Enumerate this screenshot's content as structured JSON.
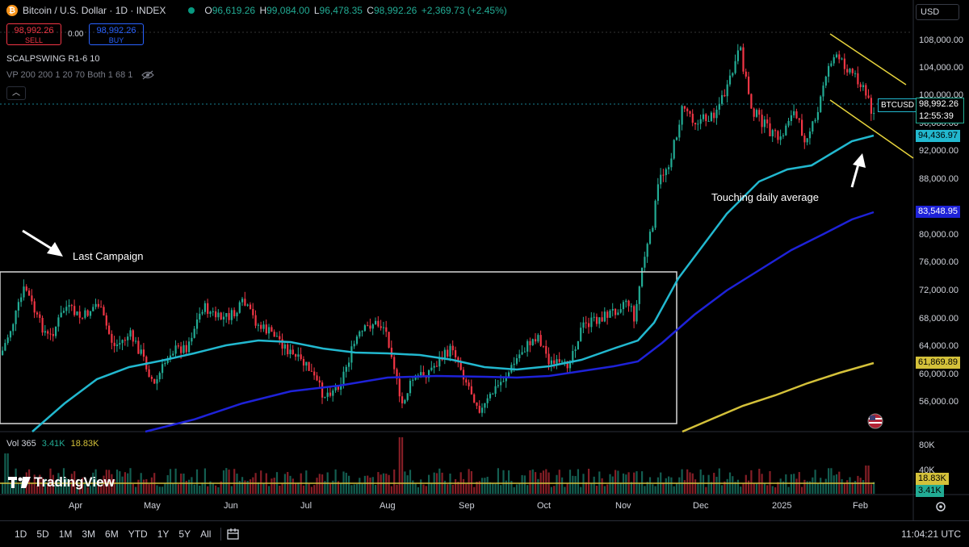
{
  "header": {
    "symbol_title": "Bitcoin / U.S. Dollar · 1D · INDEX",
    "btc_glyph": "₿",
    "ohlc": [
      {
        "key": "O",
        "value": "96,619.26"
      },
      {
        "key": "H",
        "value": "99,084.00"
      },
      {
        "key": "L",
        "value": "96,478.35"
      },
      {
        "key": "C",
        "value": "98,992.26"
      }
    ],
    "change": "+2,369.73 (+2.45%)"
  },
  "trade": {
    "sell_price": "98,992.26",
    "sell_label": "SELL",
    "spread": "0.00",
    "buy_price": "98,992.26",
    "buy_label": "BUY"
  },
  "indicators": {
    "line1": "SCALPSWING R1-6 10",
    "line2": "VP 200 200 1 20 70 Both 1 68 1"
  },
  "currency": "USD",
  "price_axis": [
    "108,000.00",
    "104,000.00",
    "100,000.00",
    "96,000.00",
    "92,000.00",
    "88,000.00",
    "80,000.00",
    "76,000.00",
    "72,000.00",
    "68,000.00",
    "64,000.00",
    "60,000.00",
    "56,000.00"
  ],
  "price_tags": {
    "symbol": "BTCUSD",
    "last_price": "98,992.26",
    "countdown": "12:55:39",
    "ma_fast": "94,436.97",
    "ma_mid": "83,548.95",
    "ma_slow": "61,869.89"
  },
  "volume": {
    "label": "Vol 365",
    "vol_value": "3.41K",
    "ma_value": "18.83K",
    "axis": [
      "80K",
      "40K"
    ],
    "tag_ma": "18.83K",
    "tag_vol": "3.41K"
  },
  "time_axis": [
    "Apr",
    "May",
    "Jun",
    "Jul",
    "Aug",
    "Sep",
    "Oct",
    "Nov",
    "Dec",
    "2025",
    "Feb"
  ],
  "annotations": {
    "last_campaign": "Last Campaign",
    "touching": "Touching daily average"
  },
  "branding": "TradingView",
  "bottom_bar": {
    "ranges": [
      "1D",
      "5D",
      "1M",
      "3M",
      "6M",
      "YTD",
      "1Y",
      "5Y",
      "All"
    ],
    "time": "11:04:21 UTC"
  },
  "colors": {
    "up": "#22ab94",
    "down": "#f23645",
    "ma_fast": "#22b8cf",
    "ma_mid": "#1e22d8",
    "ma_slow": "#d4c13a",
    "channel": "#e6d33c"
  }
}
